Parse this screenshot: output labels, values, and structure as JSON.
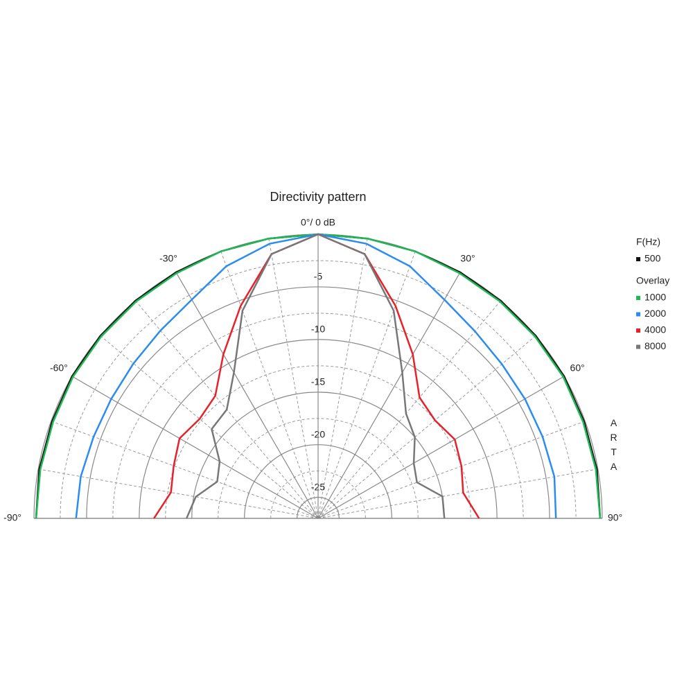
{
  "chart_data": {
    "type": "polar",
    "title": "Directivity pattern",
    "theta": [
      -90,
      -80,
      -70,
      -60,
      -50,
      -40,
      -30,
      -20,
      -10,
      0,
      10,
      20,
      30,
      40,
      50,
      60,
      70,
      80,
      90
    ],
    "thetalim": [
      -90,
      90
    ],
    "thetaticks": [
      {
        "value": -90,
        "label": "-90°"
      },
      {
        "value": -60,
        "label": "-60°"
      },
      {
        "value": -30,
        "label": "-30°"
      },
      {
        "value": 0,
        "label": "0°/ 0 dB"
      },
      {
        "value": 30,
        "label": "30°"
      },
      {
        "value": 60,
        "label": "60°"
      },
      {
        "value": 90,
        "label": "90°"
      }
    ],
    "thetaminorticks": [
      -80,
      -70,
      -50,
      -40,
      -20,
      -10,
      10,
      20,
      40,
      50,
      70,
      80
    ],
    "rlim": [
      -27,
      0
    ],
    "rticks": [
      -5,
      -10,
      -15,
      -20,
      -25
    ],
    "rminorticks": [
      -2.5,
      -7.5,
      -12.5,
      -17.5,
      -22.5
    ],
    "legend_title": "F(Hz)",
    "overlay_title": "Overlay",
    "watermark": "ARTA",
    "series": [
      {
        "name": "500",
        "color": "#111111",
        "values": [
          -0.2,
          -0.1,
          -0.1,
          0,
          0,
          0,
          0,
          0,
          0,
          0,
          0,
          0,
          0,
          0,
          0,
          0,
          -0.1,
          -0.1,
          -0.2
        ]
      },
      {
        "name": "1000",
        "color": "#1db954",
        "values": [
          -0.2,
          -0.2,
          -0.2,
          -0.1,
          -0.1,
          -0.1,
          -0.1,
          0,
          0,
          0,
          0,
          0,
          -0.1,
          -0.1,
          -0.1,
          -0.1,
          -0.2,
          -0.2,
          -0.2
        ]
      },
      {
        "name": "2000",
        "color": "#2b8cf0",
        "values": [
          -4.0,
          -4.1,
          -4.3,
          -4.3,
          -4.1,
          -3.7,
          -3.0,
          -1.5,
          -0.5,
          0,
          -0.5,
          -1.5,
          -3.0,
          -3.8,
          -4.2,
          -4.3,
          -4.3,
          -4.2,
          -4.4
        ]
      },
      {
        "name": "4000",
        "color": "#e8202a",
        "values": [
          -11.4,
          -12.8,
          -12.4,
          -11.8,
          -12.3,
          -11.8,
          -9.0,
          -5.5,
          -1.5,
          0,
          -1.5,
          -5.5,
          -9.0,
          -12.0,
          -12.5,
          -12.0,
          -12.5,
          -13.0,
          -11.7
        ]
      },
      {
        "name": "8000",
        "color": "#777777",
        "values": [
          -14.5,
          -15.2,
          -16.8,
          -16.2,
          -13.8,
          -13.5,
          -11.0,
          -6.0,
          -1.5,
          0,
          -1.5,
          -6.0,
          -11.0,
          -14.0,
          -15.0,
          -16.5,
          -17.0,
          -15.0,
          -15.0
        ]
      }
    ]
  }
}
